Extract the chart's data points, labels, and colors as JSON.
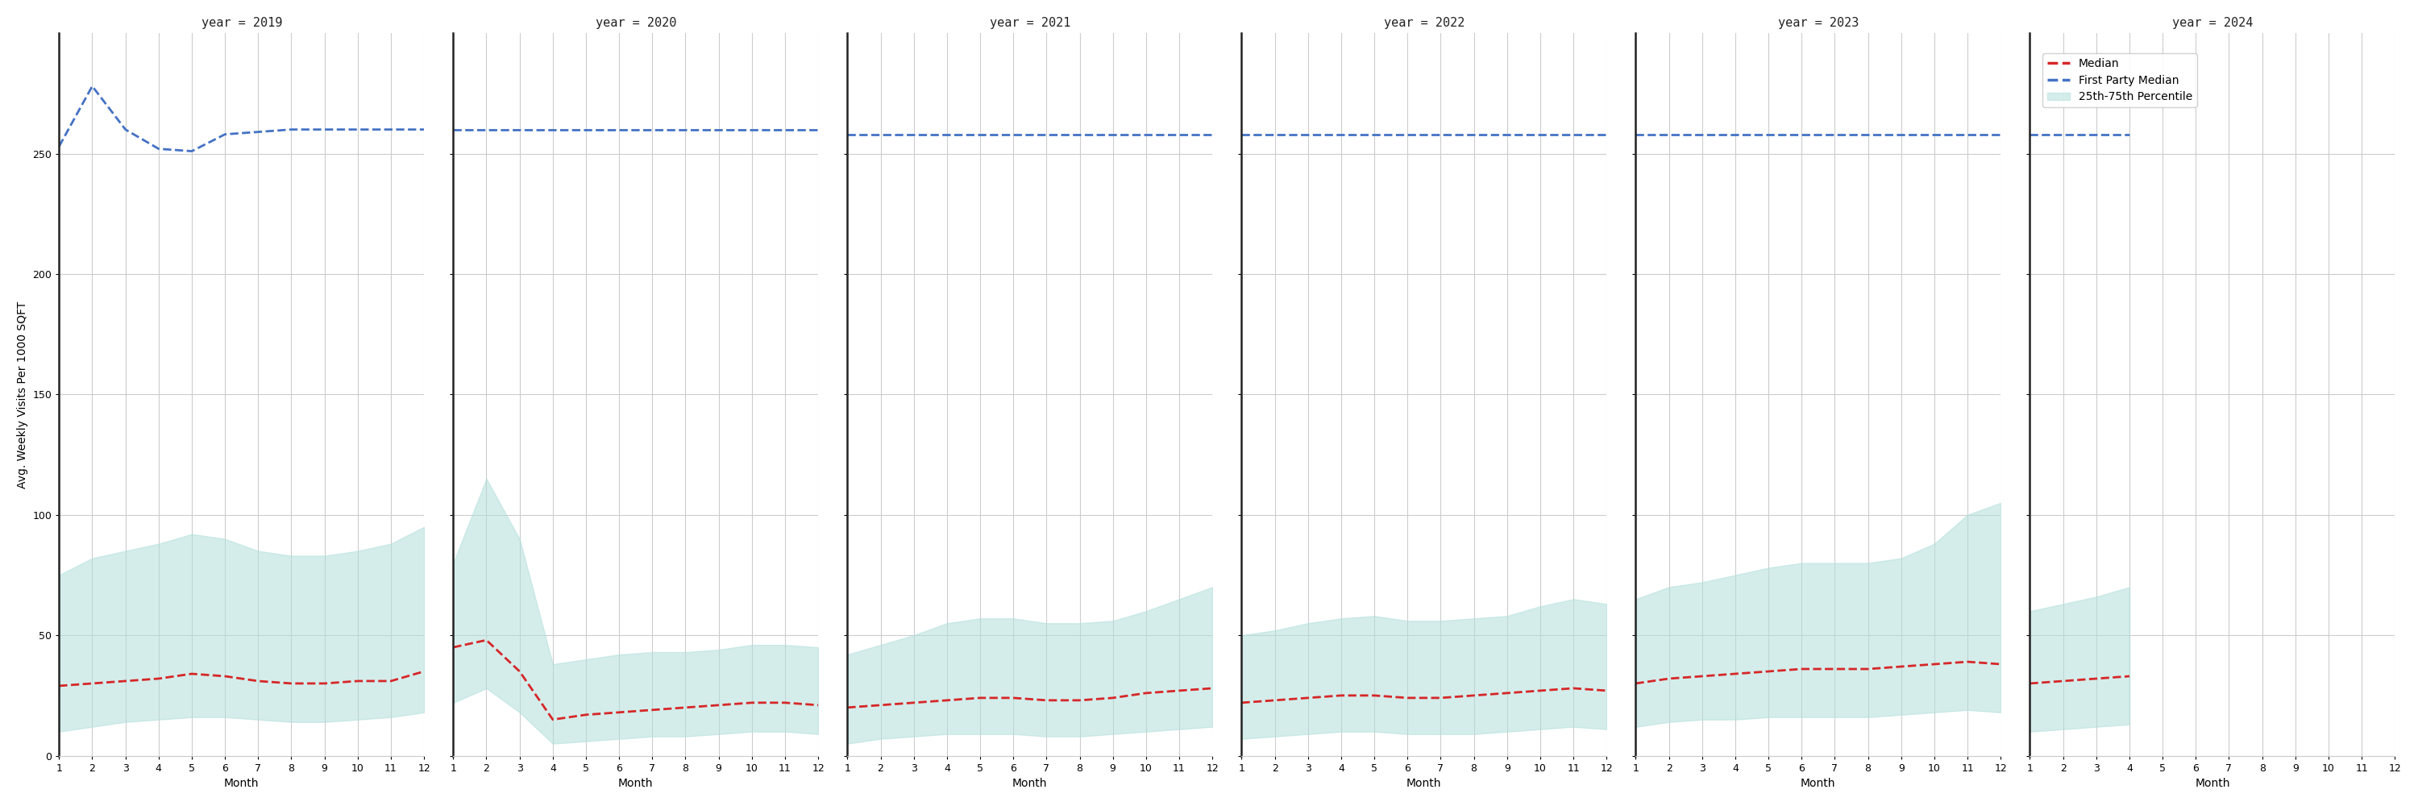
{
  "years": [
    2019,
    2020,
    2021,
    2022,
    2023,
    2024
  ],
  "months_full": [
    1,
    2,
    3,
    4,
    5,
    6,
    7,
    8,
    9,
    10,
    11,
    12
  ],
  "months_2024": [
    1,
    2,
    3,
    4
  ],
  "first_party_median": {
    "2019": [
      253,
      278,
      260,
      252,
      251,
      258,
      259,
      260,
      260,
      260,
      260,
      260
    ],
    "2020": [
      260,
      260,
      260,
      260,
      260,
      260,
      260,
      260,
      260,
      260,
      260,
      260
    ],
    "2021": [
      258,
      258,
      258,
      258,
      258,
      258,
      258,
      258,
      258,
      258,
      258,
      258
    ],
    "2022": [
      258,
      258,
      258,
      258,
      258,
      258,
      258,
      258,
      258,
      258,
      258,
      258
    ],
    "2023": [
      258,
      258,
      258,
      258,
      258,
      258,
      258,
      258,
      258,
      258,
      258,
      258
    ],
    "2024": [
      258,
      258,
      258,
      258
    ]
  },
  "median": {
    "2019": [
      29,
      30,
      31,
      32,
      34,
      33,
      31,
      30,
      30,
      31,
      31,
      35
    ],
    "2020": [
      45,
      48,
      35,
      15,
      17,
      18,
      19,
      20,
      21,
      22,
      22,
      21
    ],
    "2021": [
      20,
      21,
      22,
      23,
      24,
      24,
      23,
      23,
      24,
      26,
      27,
      28
    ],
    "2022": [
      22,
      23,
      24,
      25,
      25,
      24,
      24,
      25,
      26,
      27,
      28,
      27
    ],
    "2023": [
      30,
      32,
      33,
      34,
      35,
      36,
      36,
      36,
      37,
      38,
      39,
      38
    ],
    "2024": [
      30,
      31,
      32,
      33
    ]
  },
  "p25": {
    "2019": [
      10,
      12,
      14,
      15,
      16,
      16,
      15,
      14,
      14,
      15,
      16,
      18
    ],
    "2020": [
      22,
      28,
      18,
      5,
      6,
      7,
      8,
      8,
      9,
      10,
      10,
      9
    ],
    "2021": [
      5,
      7,
      8,
      9,
      9,
      9,
      8,
      8,
      9,
      10,
      11,
      12
    ],
    "2022": [
      7,
      8,
      9,
      10,
      10,
      9,
      9,
      9,
      10,
      11,
      12,
      11
    ],
    "2023": [
      12,
      14,
      15,
      15,
      16,
      16,
      16,
      16,
      17,
      18,
      19,
      18
    ],
    "2024": [
      10,
      11,
      12,
      13
    ]
  },
  "p75": {
    "2019": [
      75,
      82,
      85,
      88,
      92,
      90,
      85,
      83,
      83,
      85,
      88,
      95
    ],
    "2020": [
      80,
      115,
      90,
      38,
      40,
      42,
      43,
      43,
      44,
      46,
      46,
      45
    ],
    "2021": [
      42,
      46,
      50,
      55,
      57,
      57,
      55,
      55,
      56,
      60,
      65,
      70
    ],
    "2022": [
      50,
      52,
      55,
      57,
      58,
      56,
      56,
      57,
      58,
      62,
      65,
      63
    ],
    "2023": [
      65,
      70,
      72,
      75,
      78,
      80,
      80,
      80,
      82,
      88,
      100,
      105
    ],
    "2024": [
      60,
      63,
      66,
      70
    ]
  },
  "ylim": [
    0,
    300
  ],
  "yticks": [
    0,
    50,
    100,
    150,
    200,
    250
  ],
  "ylabel": "Avg. Weekly Visits Per 1000 SQFT",
  "xlabel": "Month",
  "xticks": [
    1,
    2,
    3,
    4,
    5,
    6,
    7,
    8,
    9,
    10,
    11,
    12
  ],
  "median_color": "#d62728",
  "fp_median_color": "#4472c4",
  "band_color": "#b2dfdb",
  "band_alpha": 0.55,
  "line_width": 2.0,
  "background_color": "#ffffff",
  "grid_color": "#cccccc",
  "legend_labels": [
    "Median",
    "First Party Median",
    "25th-75th Percentile"
  ]
}
